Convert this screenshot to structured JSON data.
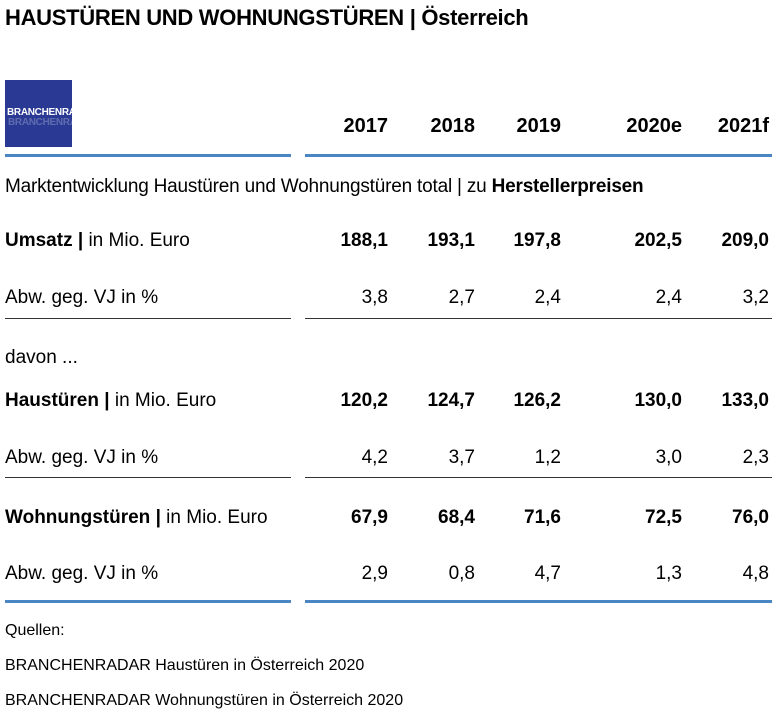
{
  "header": {
    "title": "HAUSTÜREN UND WOHNUNGSTÜREN | Österreich",
    "logo_text": "BRANCHENRADAR"
  },
  "table": {
    "years": [
      "2017",
      "2018",
      "2019",
      "2020e",
      "2021f"
    ],
    "section_heading_prefix": "Marktentwicklung Haustüren und Wohnungstüren total | zu ",
    "section_heading_bold": "Herstellerpreisen",
    "rows": {
      "umsatz": {
        "label_bold": "Umsatz |",
        "label_rest": " in Mio. Euro",
        "values": [
          "188,1",
          "193,1",
          "197,8",
          "202,5",
          "209,0"
        ]
      },
      "umsatz_abw": {
        "label": "Abw. geg. VJ in %",
        "values": [
          "3,8",
          "2,7",
          "2,4",
          "2,4",
          "3,2"
        ]
      },
      "davon": {
        "label": "davon ..."
      },
      "haustueren": {
        "label_bold": "Haustüren |",
        "label_rest": " in Mio. Euro",
        "values": [
          "120,2",
          "124,7",
          "126,2",
          "130,0",
          "133,0"
        ]
      },
      "haustueren_abw": {
        "label": "Abw. geg. VJ in %",
        "values": [
          "4,2",
          "3,7",
          "1,2",
          "3,0",
          "2,3"
        ]
      },
      "wohnungstueren": {
        "label_bold": "Wohnungstüren |",
        "label_rest": " in Mio. Euro",
        "values": [
          "67,9",
          "68,4",
          "71,6",
          "72,5",
          "76,0"
        ]
      },
      "wohnungstueren_abw": {
        "label": "Abw. geg. VJ in %",
        "values": [
          "2,9",
          "0,8",
          "4,7",
          "1,3",
          "4,8"
        ]
      }
    }
  },
  "sources": {
    "heading": "Quellen:",
    "items": [
      "BRANCHENRADAR Haustüren in Österreich 2020",
      "BRANCHENRADAR Wohnungstüren in Österreich 2020"
    ]
  },
  "colors": {
    "rule_blue": "#4a86c4",
    "logo_bg": "#2a3a94"
  }
}
